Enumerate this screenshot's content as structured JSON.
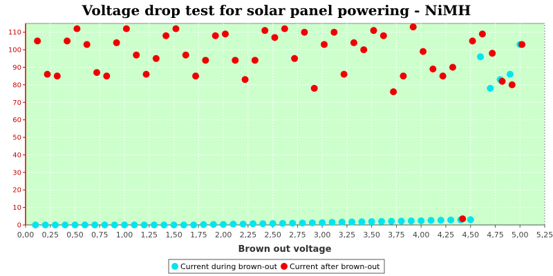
{
  "chart_data": {
    "type": "scatter",
    "title": "Voltage drop test for solar panel powering -  NiMH",
    "xlabel": "Brown out voltage",
    "ylabel": "",
    "xlim": [
      0,
      5.25
    ],
    "ylim": [
      0,
      115
    ],
    "x_ticks": [
      "0,00",
      "0,25",
      "0,50",
      "0,75",
      "1,00",
      "1,25",
      "1,50",
      "1,75",
      "2,00",
      "2,25",
      "2,50",
      "2,75",
      "3,00",
      "3,25",
      "3,50",
      "3,75",
      "4,00",
      "4,25",
      "4,50",
      "4,75",
      "5,00",
      "5,25"
    ],
    "y_ticks": [
      "0",
      "10",
      "20",
      "30",
      "40",
      "50",
      "60",
      "70",
      "80",
      "90",
      "100",
      "110"
    ],
    "grid": true,
    "legend_position": "bottom",
    "plot_background": "#ccffcc",
    "series": [
      {
        "name": "Current during brown-out",
        "color": "#00e5ee",
        "points": [
          [
            0.1,
            0
          ],
          [
            0.2,
            0
          ],
          [
            0.3,
            0
          ],
          [
            0.4,
            0
          ],
          [
            0.5,
            0
          ],
          [
            0.6,
            0
          ],
          [
            0.7,
            0
          ],
          [
            0.8,
            0
          ],
          [
            0.9,
            0
          ],
          [
            1.0,
            0
          ],
          [
            1.1,
            0
          ],
          [
            1.2,
            0
          ],
          [
            1.3,
            0
          ],
          [
            1.4,
            0
          ],
          [
            1.5,
            0
          ],
          [
            1.6,
            0
          ],
          [
            1.7,
            0
          ],
          [
            1.8,
            0.2
          ],
          [
            1.9,
            0.3
          ],
          [
            2.0,
            0.3
          ],
          [
            2.1,
            0.5
          ],
          [
            2.2,
            0.5
          ],
          [
            2.3,
            0.7
          ],
          [
            2.4,
            0.7
          ],
          [
            2.5,
            0.8
          ],
          [
            2.6,
            0.9
          ],
          [
            2.7,
            1.0
          ],
          [
            2.8,
            1.1
          ],
          [
            2.9,
            1.2
          ],
          [
            3.0,
            1.3
          ],
          [
            3.1,
            1.5
          ],
          [
            3.2,
            1.6
          ],
          [
            3.3,
            1.7
          ],
          [
            3.4,
            1.8
          ],
          [
            3.5,
            1.9
          ],
          [
            3.6,
            2.0
          ],
          [
            3.7,
            2.1
          ],
          [
            3.8,
            2.2
          ],
          [
            3.9,
            2.3
          ],
          [
            4.0,
            2.4
          ],
          [
            4.1,
            2.6
          ],
          [
            4.2,
            2.7
          ],
          [
            4.3,
            2.8
          ],
          [
            4.4,
            2.9
          ],
          [
            4.5,
            3.0
          ],
          [
            4.6,
            96
          ],
          [
            4.7,
            78
          ],
          [
            4.8,
            83
          ],
          [
            4.9,
            86
          ],
          [
            5.0,
            103
          ]
        ]
      },
      {
        "name": "Current after brown-out",
        "color": "#ee0000",
        "points": [
          [
            0.12,
            105
          ],
          [
            0.22,
            86
          ],
          [
            0.32,
            85
          ],
          [
            0.42,
            105
          ],
          [
            0.52,
            112
          ],
          [
            0.62,
            103
          ],
          [
            0.72,
            87
          ],
          [
            0.82,
            85
          ],
          [
            0.92,
            104
          ],
          [
            1.02,
            112
          ],
          [
            1.12,
            97
          ],
          [
            1.22,
            86
          ],
          [
            1.32,
            95
          ],
          [
            1.42,
            108
          ],
          [
            1.52,
            112
          ],
          [
            1.62,
            97
          ],
          [
            1.72,
            85
          ],
          [
            1.82,
            94
          ],
          [
            1.92,
            108
          ],
          [
            2.02,
            109
          ],
          [
            2.12,
            94
          ],
          [
            2.22,
            83
          ],
          [
            2.32,
            94
          ],
          [
            2.42,
            111
          ],
          [
            2.52,
            107
          ],
          [
            2.62,
            112
          ],
          [
            2.72,
            95
          ],
          [
            2.82,
            110
          ],
          [
            2.92,
            78
          ],
          [
            3.02,
            103
          ],
          [
            3.12,
            110
          ],
          [
            3.22,
            86
          ],
          [
            3.32,
            104
          ],
          [
            3.42,
            100
          ],
          [
            3.52,
            111
          ],
          [
            3.62,
            108
          ],
          [
            3.72,
            76
          ],
          [
            3.82,
            85
          ],
          [
            3.92,
            113
          ],
          [
            4.02,
            99
          ],
          [
            4.12,
            89
          ],
          [
            4.22,
            85
          ],
          [
            4.32,
            90
          ],
          [
            4.42,
            3.5
          ],
          [
            4.52,
            105
          ],
          [
            4.62,
            109
          ],
          [
            4.72,
            98
          ],
          [
            4.82,
            82
          ],
          [
            4.92,
            80
          ],
          [
            5.02,
            103
          ]
        ]
      }
    ]
  }
}
